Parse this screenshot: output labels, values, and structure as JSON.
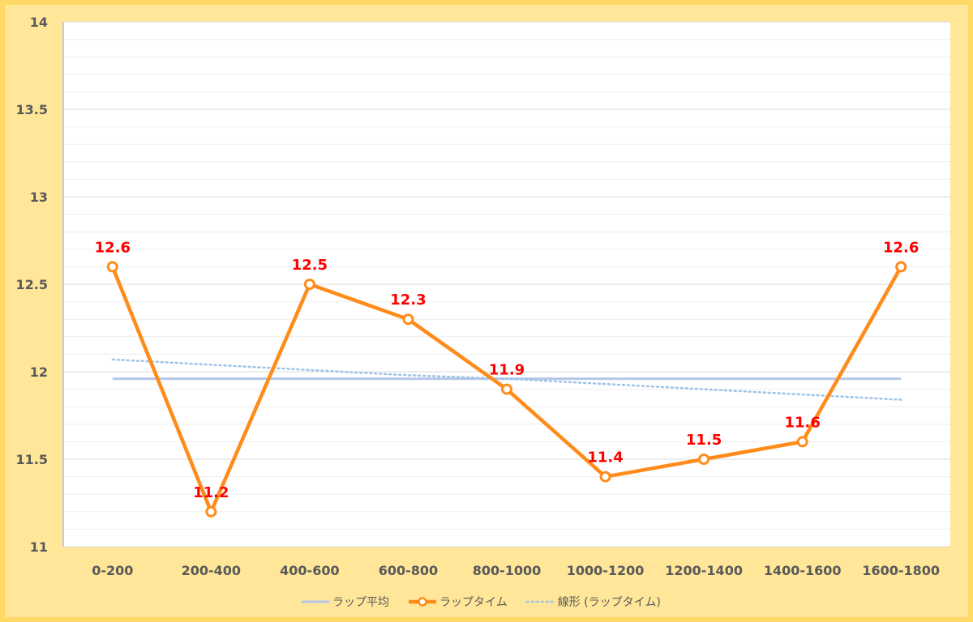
{
  "chart_data": {
    "type": "line",
    "title": "",
    "xlabel": "",
    "ylabel": "",
    "ylim": [
      11,
      14
    ],
    "y_ticks": [
      "11",
      "11.5",
      "12",
      "12.5",
      "13",
      "13.5",
      "14"
    ],
    "y_tick_values": [
      11,
      11.5,
      12,
      12.5,
      13,
      13.5,
      14
    ],
    "minor_gridlines": true,
    "legend_position": "bottom",
    "categories": [
      "0-200",
      "200-400",
      "400-600",
      "600-800",
      "800-1000",
      "1000-1200",
      "1200-1400",
      "1400-1600",
      "1600-1800"
    ],
    "series": [
      {
        "name": "ラップ平均",
        "kind": "average",
        "color": "#b4c7e7",
        "values": [
          11.96,
          11.96,
          11.96,
          11.96,
          11.96,
          11.96,
          11.96,
          11.96,
          11.96
        ]
      },
      {
        "name": "ラップタイム",
        "kind": "laps",
        "color": "#ff8c1a",
        "marker_fill": "#ffffff",
        "label_color": "#ff0000",
        "values": [
          12.6,
          11.2,
          12.5,
          12.3,
          11.9,
          11.4,
          11.5,
          11.6,
          12.6
        ],
        "labels": [
          "12.6",
          "11.2",
          "12.5",
          "12.3",
          "11.9",
          "11.4",
          "11.5",
          "11.6",
          "12.6"
        ]
      },
      {
        "name": "線形 (ラップタイム)",
        "kind": "trend",
        "color": "#9dc3e6",
        "values": [
          12.07,
          12.04,
          12.01,
          11.98,
          11.96,
          11.93,
          11.9,
          11.87,
          11.84
        ]
      }
    ]
  }
}
